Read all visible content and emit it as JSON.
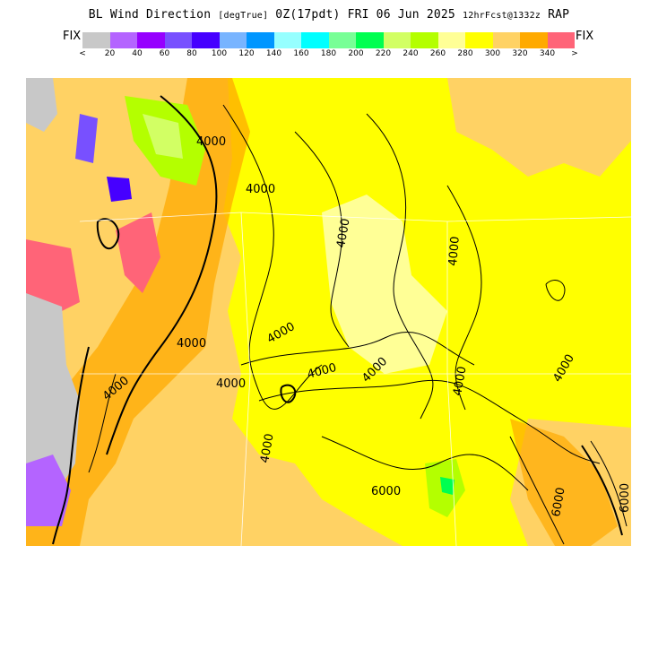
{
  "title": {
    "main": "BL Wind Direction",
    "units": "[degTrue]",
    "run": "0Z(17pdt) FRI 06 Jun 2025",
    "forecast": "12hrFcst@1332z",
    "model": "RAP"
  },
  "legend": {
    "fix_left": "FIX",
    "fix_right": "FIX",
    "colors": [
      "#c8c8c8",
      "#b464ff",
      "#9600ff",
      "#7850ff",
      "#4600ff",
      "#78b4ff",
      "#0096ff",
      "#96ffff",
      "#00ffff",
      "#78ff96",
      "#00ff50",
      "#d2ff64",
      "#b4ff00",
      "#ffff96",
      "#ffff00",
      "#ffd264",
      "#ffaa00",
      "#ff6478"
    ],
    "ticks": [
      "<",
      "20",
      "40",
      "60",
      "80",
      "100",
      "120",
      "140",
      "160",
      "180",
      "200",
      "220",
      "240",
      "260",
      "280",
      "300",
      "320",
      "340",
      ">"
    ]
  },
  "contour_labels": [
    "4000",
    "4000",
    "4000",
    "4000",
    "4000",
    "4000",
    "4000",
    "4000",
    "4000",
    "4000",
    "4000",
    "4000",
    "4000",
    "6000",
    "6000",
    "6000"
  ]
}
